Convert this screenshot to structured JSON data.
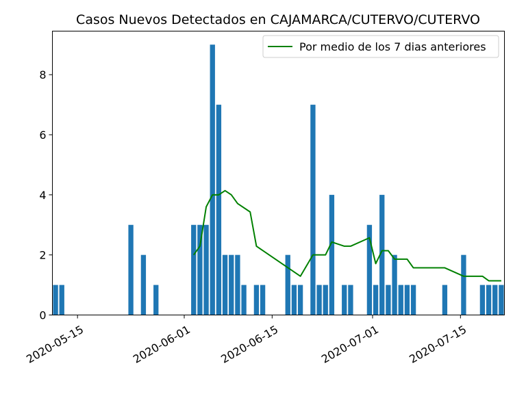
{
  "chart_data": {
    "type": "bar",
    "title": "Casos Nuevos Detectados en CAJAMARCA/CUTERVO/CUTERVO",
    "xlabel": "",
    "ylabel": "",
    "x_range": [
      "2020-05-11",
      "2020-07-22"
    ],
    "ylim": [
      0,
      9.45
    ],
    "grid": false,
    "legend_position": "top-right",
    "x_tick_labels": [
      "2020-05-15",
      "2020-06-01",
      "2020-06-15",
      "2020-07-01",
      "2020-07-15"
    ],
    "y_tick_labels": [
      "0",
      "2",
      "4",
      "6",
      "8"
    ],
    "colors": {
      "bar": "#1f77b4",
      "line": "#008000"
    },
    "bars": [
      {
        "date": "2020-05-11",
        "value": 1
      },
      {
        "date": "2020-05-12",
        "value": 1
      },
      {
        "date": "2020-05-23",
        "value": 3
      },
      {
        "date": "2020-05-25",
        "value": 2
      },
      {
        "date": "2020-05-27",
        "value": 1
      },
      {
        "date": "2020-06-02",
        "value": 3
      },
      {
        "date": "2020-06-03",
        "value": 3
      },
      {
        "date": "2020-06-04",
        "value": 3
      },
      {
        "date": "2020-06-05",
        "value": 9
      },
      {
        "date": "2020-06-06",
        "value": 7
      },
      {
        "date": "2020-06-07",
        "value": 2
      },
      {
        "date": "2020-06-08",
        "value": 2
      },
      {
        "date": "2020-06-09",
        "value": 2
      },
      {
        "date": "2020-06-10",
        "value": 1
      },
      {
        "date": "2020-06-12",
        "value": 1
      },
      {
        "date": "2020-06-13",
        "value": 1
      },
      {
        "date": "2020-06-17",
        "value": 2
      },
      {
        "date": "2020-06-18",
        "value": 1
      },
      {
        "date": "2020-06-19",
        "value": 1
      },
      {
        "date": "2020-06-21",
        "value": 7
      },
      {
        "date": "2020-06-22",
        "value": 1
      },
      {
        "date": "2020-06-23",
        "value": 1
      },
      {
        "date": "2020-06-24",
        "value": 4
      },
      {
        "date": "2020-06-26",
        "value": 1
      },
      {
        "date": "2020-06-27",
        "value": 1
      },
      {
        "date": "2020-06-30",
        "value": 3
      },
      {
        "date": "2020-07-01",
        "value": 1
      },
      {
        "date": "2020-07-02",
        "value": 4
      },
      {
        "date": "2020-07-03",
        "value": 1
      },
      {
        "date": "2020-07-04",
        "value": 2
      },
      {
        "date": "2020-07-05",
        "value": 1
      },
      {
        "date": "2020-07-06",
        "value": 1
      },
      {
        "date": "2020-07-07",
        "value": 1
      },
      {
        "date": "2020-07-12",
        "value": 1
      },
      {
        "date": "2020-07-15",
        "value": 2
      },
      {
        "date": "2020-07-18",
        "value": 1
      },
      {
        "date": "2020-07-19",
        "value": 1
      },
      {
        "date": "2020-07-20",
        "value": 1
      },
      {
        "date": "2020-07-21",
        "value": 1
      }
    ],
    "series": [
      {
        "name": "Por medio de los 7 dias anteriores",
        "type": "line",
        "points": [
          {
            "date": "2020-06-02",
            "value": 2.0
          },
          {
            "date": "2020-06-03",
            "value": 2.29
          },
          {
            "date": "2020-06-04",
            "value": 3.6
          },
          {
            "date": "2020-06-05",
            "value": 4.0
          },
          {
            "date": "2020-06-06",
            "value": 4.0
          },
          {
            "date": "2020-06-07",
            "value": 4.14
          },
          {
            "date": "2020-06-08",
            "value": 4.0
          },
          {
            "date": "2020-06-09",
            "value": 3.71
          },
          {
            "date": "2020-06-11",
            "value": 3.43
          },
          {
            "date": "2020-06-12",
            "value": 2.29
          },
          {
            "date": "2020-06-19",
            "value": 1.29
          },
          {
            "date": "2020-06-21",
            "value": 2.0
          },
          {
            "date": "2020-06-23",
            "value": 2.0
          },
          {
            "date": "2020-06-24",
            "value": 2.43
          },
          {
            "date": "2020-06-26",
            "value": 2.29
          },
          {
            "date": "2020-06-27",
            "value": 2.29
          },
          {
            "date": "2020-06-30",
            "value": 2.57
          },
          {
            "date": "2020-07-01",
            "value": 1.71
          },
          {
            "date": "2020-07-02",
            "value": 2.14
          },
          {
            "date": "2020-07-03",
            "value": 2.14
          },
          {
            "date": "2020-07-04",
            "value": 1.86
          },
          {
            "date": "2020-07-06",
            "value": 1.86
          },
          {
            "date": "2020-07-07",
            "value": 1.57
          },
          {
            "date": "2020-07-12",
            "value": 1.57
          },
          {
            "date": "2020-07-15",
            "value": 1.29
          },
          {
            "date": "2020-07-18",
            "value": 1.29
          },
          {
            "date": "2020-07-19",
            "value": 1.14
          },
          {
            "date": "2020-07-21",
            "value": 1.14
          }
        ]
      }
    ]
  }
}
